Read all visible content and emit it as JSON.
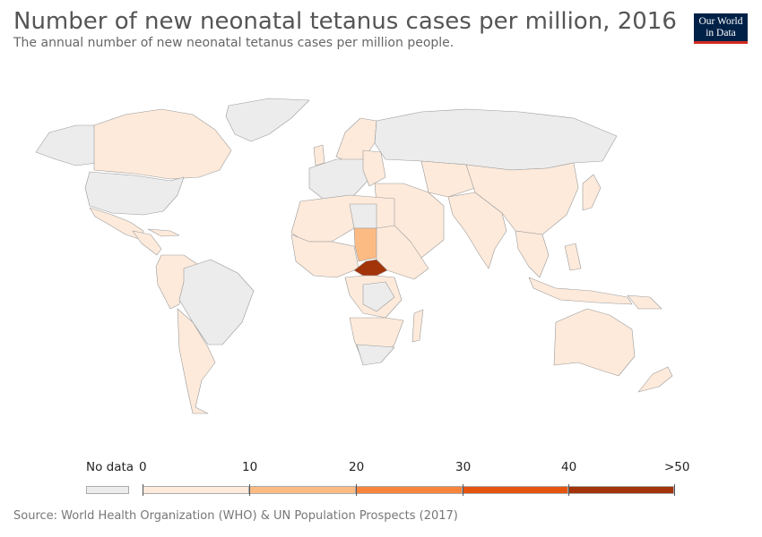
{
  "header": {
    "title": "Number of new neonatal tetanus cases per million, 2016",
    "subtitle": "The annual number of new neonatal tetanus cases per million people."
  },
  "logo": {
    "line1": "Our World",
    "line2": "in Data"
  },
  "legend": {
    "no_data_label": "No data",
    "no_data_color": "#ececec",
    "bins": [
      {
        "label_start": "0",
        "label_end": "10",
        "color": "#fdeadb"
      },
      {
        "label_start": "10",
        "label_end": "20",
        "color": "#fdbb84"
      },
      {
        "label_start": "20",
        "label_end": "30",
        "color": "#f9843c"
      },
      {
        "label_start": "30",
        "label_end": "40",
        "color": "#e55510"
      },
      {
        "label_start": "40",
        "label_end": ">50",
        "color": "#a33309"
      }
    ]
  },
  "colors": {
    "no_data": "#ececec",
    "low": "#fdeadb",
    "bin_10_20": "#fdbb84",
    "high": "#a33309",
    "border": "#9a9a9a"
  },
  "map_data": {
    "chad": {
      "value_bin": "10-20"
    },
    "central_african_republic": {
      "value_bin": ">50"
    }
  },
  "footer": {
    "source": "Source: World Health Organization (WHO) & UN Population Prospects (2017)"
  }
}
